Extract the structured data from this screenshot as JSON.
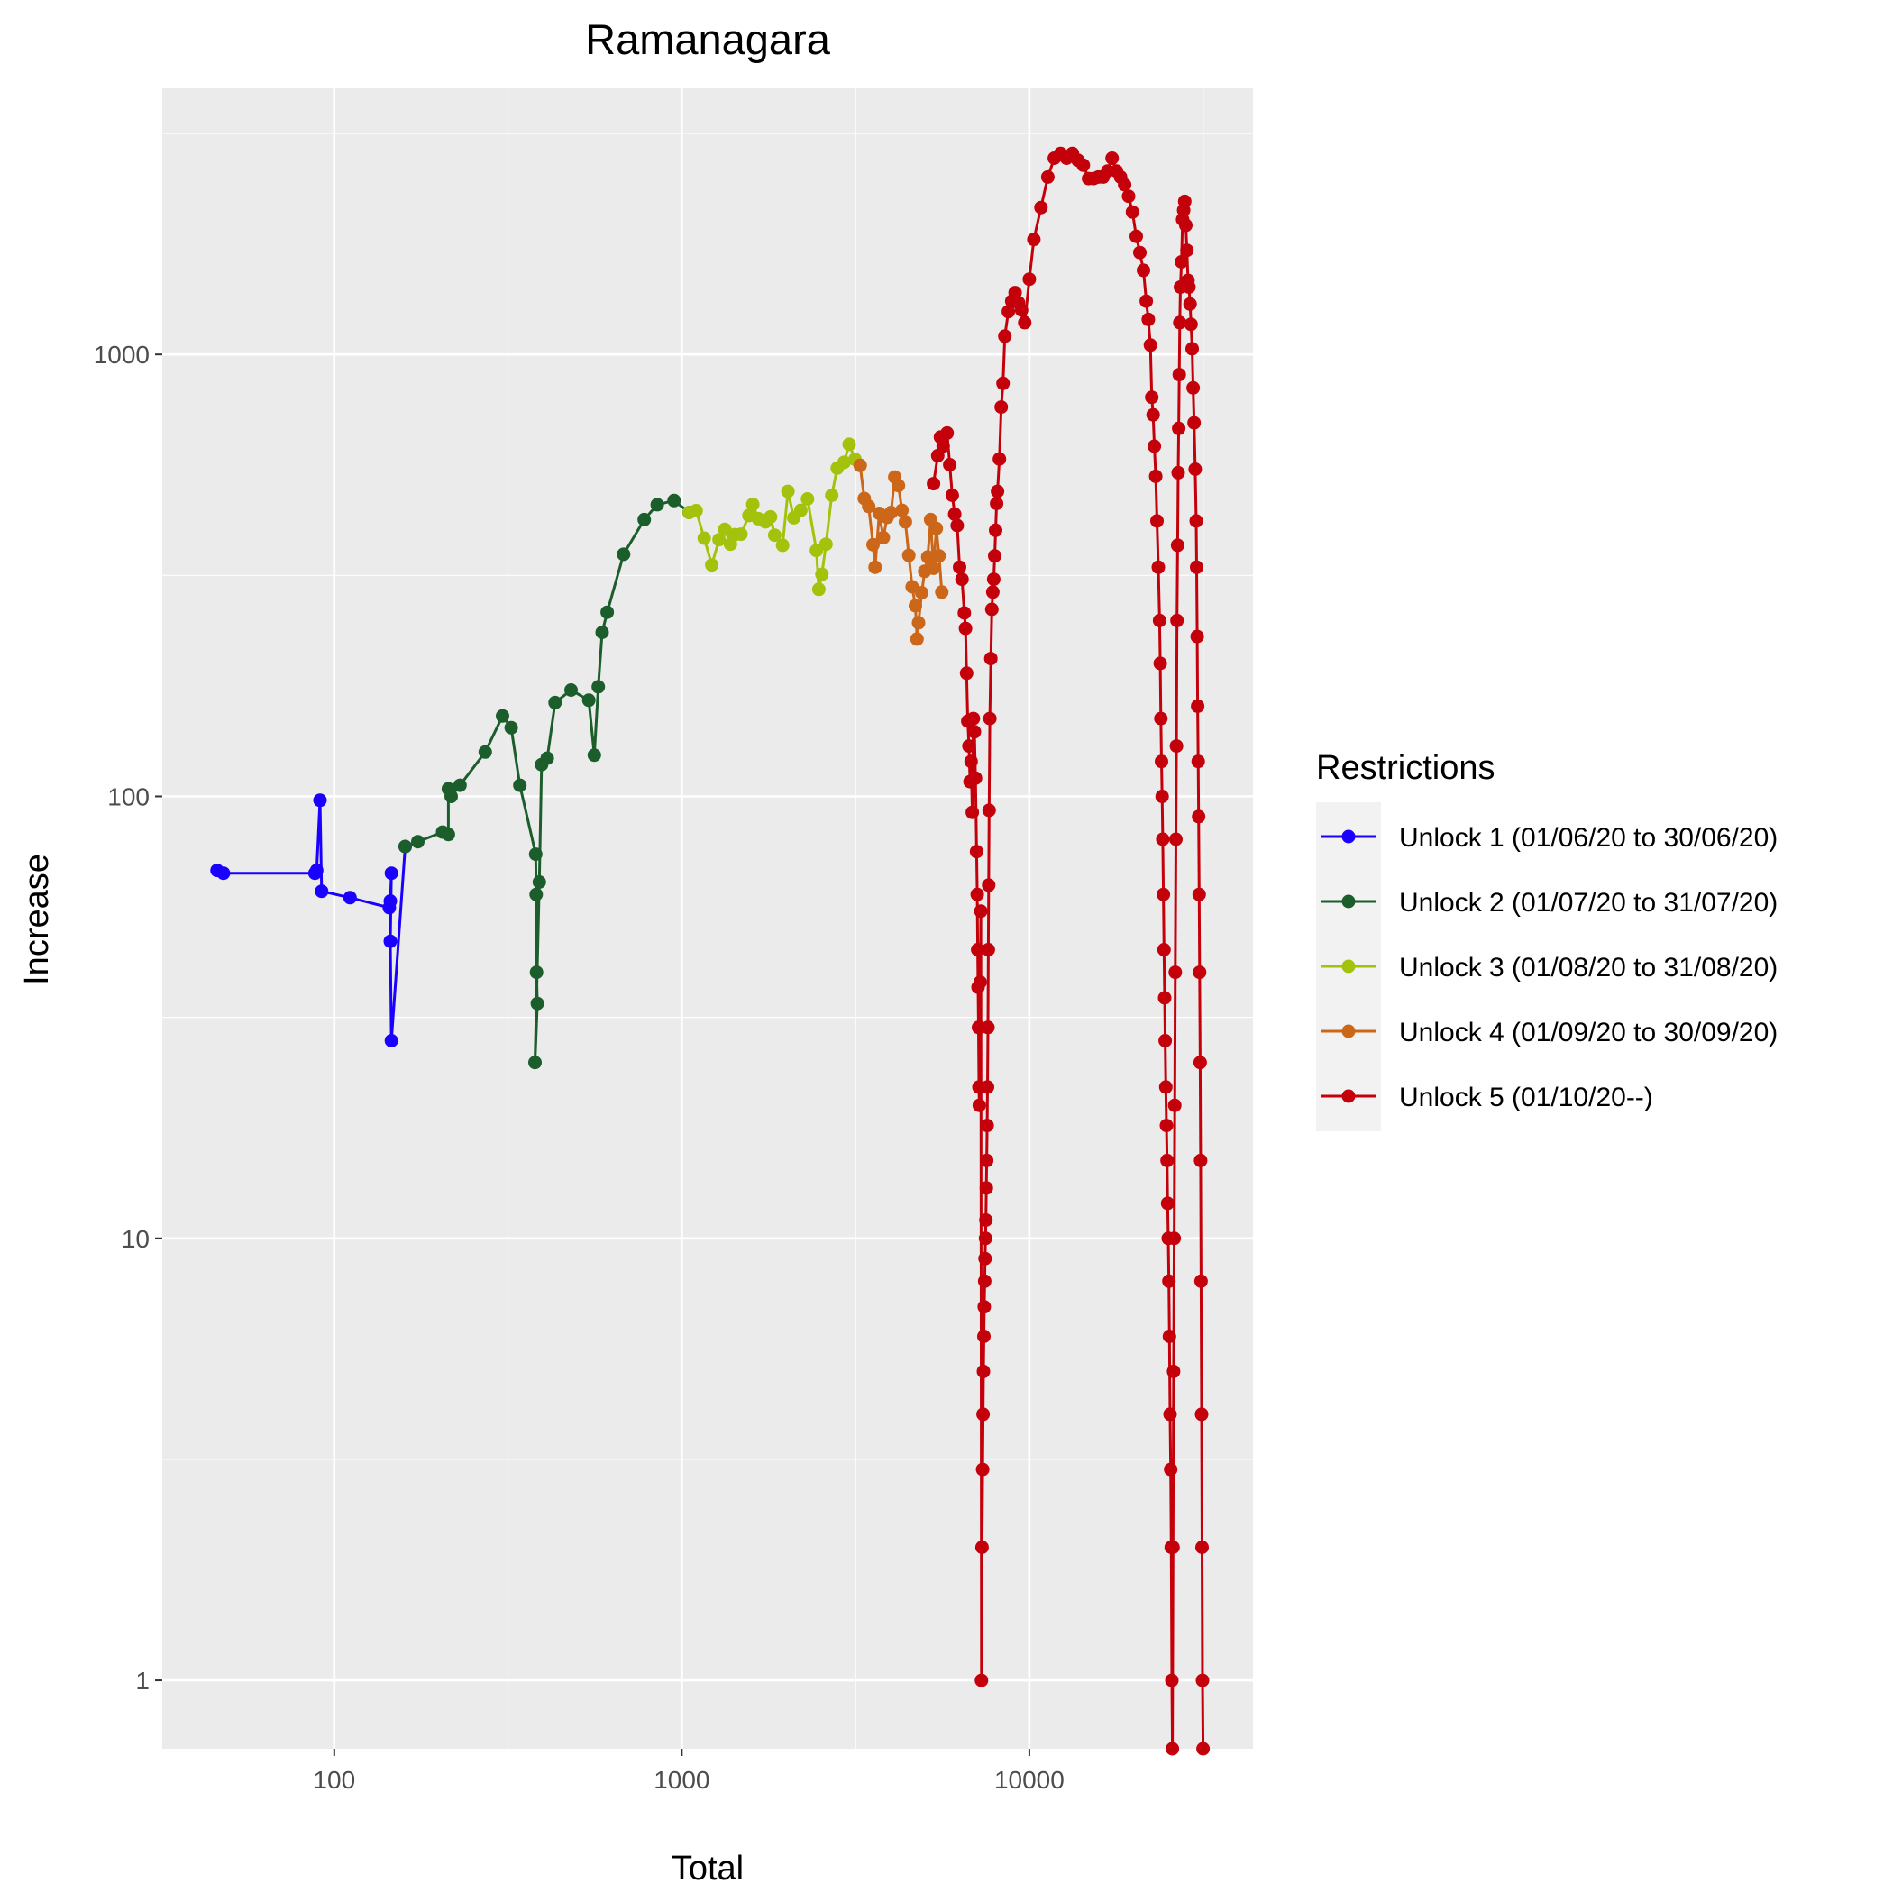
{
  "chart_data": {
    "type": "line",
    "title": "Ramanagara",
    "xlabel": "Total",
    "ylabel": "Increase",
    "x_scale": "log10",
    "y_scale": "log10",
    "xlim": [
      32,
      44000
    ],
    "ylim": [
      0.7,
      4000
    ],
    "x_ticks": [
      100,
      1000,
      10000
    ],
    "x_tick_labels": [
      "100",
      "1000",
      "10000"
    ],
    "y_ticks": [
      1,
      10,
      100,
      1000
    ],
    "y_tick_labels": [
      "1",
      "10",
      "100",
      "1000"
    ],
    "grid": true,
    "legend": {
      "title": "Restrictions",
      "position": "right"
    },
    "series": [
      {
        "name": "Unlock 1 (01/06/20 to 30/06/20)",
        "color": "#1a00ff",
        "points": [
          [
            46,
            68
          ],
          [
            48,
            67
          ],
          [
            88,
            67
          ],
          [
            89,
            68
          ],
          [
            91,
            98
          ],
          [
            92,
            61
          ],
          [
            111,
            59
          ],
          [
            144,
            56
          ],
          [
            145,
            58
          ],
          [
            146,
            67
          ],
          [
            145,
            47
          ],
          [
            146,
            28
          ],
          [
            160,
            77
          ]
        ]
      },
      {
        "name": "Unlock 2 (01/07/20 to 31/07/20)",
        "color": "#1b5e2b",
        "points": [
          [
            160,
            77
          ],
          [
            174,
            79
          ],
          [
            205,
            83
          ],
          [
            213,
            82
          ],
          [
            213,
            104
          ],
          [
            217,
            100
          ],
          [
            230,
            106
          ],
          [
            272,
            126
          ],
          [
            305,
            152
          ],
          [
            323,
            143
          ],
          [
            342,
            106
          ],
          [
            380,
            74
          ],
          [
            381,
            60
          ],
          [
            382,
            40
          ],
          [
            384,
            34
          ],
          [
            378,
            25
          ],
          [
            389,
            64
          ],
          [
            395,
            118
          ],
          [
            410,
            122
          ],
          [
            432,
            163
          ],
          [
            480,
            174
          ],
          [
            540,
            165
          ],
          [
            560,
            124
          ],
          [
            575,
            177
          ],
          [
            590,
            235
          ],
          [
            610,
            261
          ],
          [
            680,
            353
          ],
          [
            780,
            423
          ],
          [
            850,
            457
          ],
          [
            950,
            467
          ],
          [
            1050,
            439
          ]
        ]
      },
      {
        "name": "Unlock 3 (01/08/20 to 31/08/20)",
        "color": "#a2c20c",
        "points": [
          [
            1050,
            439
          ],
          [
            1100,
            443
          ],
          [
            1160,
            384
          ],
          [
            1220,
            334
          ],
          [
            1280,
            381
          ],
          [
            1330,
            402
          ],
          [
            1380,
            372
          ],
          [
            1420,
            391
          ],
          [
            1480,
            392
          ],
          [
            1560,
            432
          ],
          [
            1600,
            458
          ],
          [
            1660,
            425
          ],
          [
            1740,
            418
          ],
          [
            1800,
            429
          ],
          [
            1850,
            390
          ],
          [
            1950,
            370
          ],
          [
            2020,
            490
          ],
          [
            2100,
            427
          ],
          [
            2200,
            444
          ],
          [
            2300,
            471
          ],
          [
            2440,
            360
          ],
          [
            2480,
            294
          ],
          [
            2530,
            318
          ],
          [
            2600,
            372
          ],
          [
            2700,
            480
          ],
          [
            2800,
            553
          ],
          [
            2930,
            570
          ],
          [
            3030,
            626
          ],
          [
            3150,
            579
          ],
          [
            3260,
            561
          ]
        ]
      },
      {
        "name": "Unlock 4 (01/09/20 to 30/09/20)",
        "color": "#cc6619",
        "points": [
          [
            3260,
            561
          ],
          [
            3350,
            472
          ],
          [
            3450,
            453
          ],
          [
            3550,
            371
          ],
          [
            3600,
            330
          ],
          [
            3700,
            437
          ],
          [
            3800,
            385
          ],
          [
            3900,
            428
          ],
          [
            4000,
            439
          ],
          [
            4100,
            528
          ],
          [
            4200,
            505
          ],
          [
            4300,
            444
          ],
          [
            4400,
            418
          ],
          [
            4500,
            351
          ],
          [
            4600,
            298
          ],
          [
            4700,
            270
          ],
          [
            4750,
            227
          ],
          [
            4800,
            247
          ],
          [
            4900,
            289
          ],
          [
            5000,
            323
          ],
          [
            5100,
            348
          ],
          [
            5200,
            423
          ],
          [
            5300,
            328
          ],
          [
            5400,
            404
          ],
          [
            5500,
            350
          ],
          [
            5600,
            290
          ]
        ]
      },
      {
        "name": "Unlock 5 (01/10/20--)",
        "color": "#c4000b",
        "points": [
          [
            5300,
            510
          ],
          [
            5450,
            590
          ],
          [
            5550,
            650
          ],
          [
            5650,
            620
          ],
          [
            5800,
            664
          ],
          [
            5900,
            563
          ],
          [
            6000,
            480
          ],
          [
            6100,
            435
          ],
          [
            6200,
            410
          ],
          [
            6300,
            330
          ],
          [
            6400,
            310
          ],
          [
            6500,
            260
          ],
          [
            6550,
            240
          ],
          [
            6600,
            190
          ],
          [
            6650,
            148
          ],
          [
            6700,
            130
          ],
          [
            6750,
            108
          ],
          [
            6800,
            120
          ],
          [
            6850,
            92
          ],
          [
            6900,
            150
          ],
          [
            6950,
            140
          ],
          [
            7000,
            110
          ],
          [
            7050,
            75
          ],
          [
            7080,
            60
          ],
          [
            7100,
            45
          ],
          [
            7120,
            37
          ],
          [
            7140,
            30
          ],
          [
            7160,
            22
          ],
          [
            7180,
            20
          ],
          [
            7200,
            30
          ],
          [
            7220,
            38
          ],
          [
            7250,
            55
          ],
          [
            7280,
            1
          ],
          [
            7310,
            2
          ],
          [
            7340,
            3
          ],
          [
            7360,
            4
          ],
          [
            7380,
            5
          ],
          [
            7400,
            6
          ],
          [
            7420,
            7
          ],
          [
            7440,
            8
          ],
          [
            7460,
            9
          ],
          [
            7480,
            10
          ],
          [
            7500,
            11
          ],
          [
            7520,
            13
          ],
          [
            7540,
            15
          ],
          [
            7560,
            18
          ],
          [
            7580,
            22
          ],
          [
            7600,
            30
          ],
          [
            7620,
            45
          ],
          [
            7640,
            63
          ],
          [
            7660,
            93
          ],
          [
            7700,
            150
          ],
          [
            7750,
            205
          ],
          [
            7800,
            265
          ],
          [
            7850,
            290
          ],
          [
            7900,
            310
          ],
          [
            7950,
            350
          ],
          [
            8000,
            400
          ],
          [
            8050,
            460
          ],
          [
            8100,
            490
          ],
          [
            8200,
            580
          ],
          [
            8300,
            760
          ],
          [
            8400,
            860
          ],
          [
            8500,
            1100
          ],
          [
            8700,
            1250
          ],
          [
            8900,
            1320
          ],
          [
            9100,
            1380
          ],
          [
            9300,
            1310
          ],
          [
            9500,
            1260
          ],
          [
            9700,
            1180
          ],
          [
            10000,
            1480
          ],
          [
            10300,
            1820
          ],
          [
            10800,
            2150
          ],
          [
            11300,
            2520
          ],
          [
            11800,
            2780
          ],
          [
            12300,
            2850
          ],
          [
            12800,
            2780
          ],
          [
            13300,
            2850
          ],
          [
            13800,
            2750
          ],
          [
            14300,
            2680
          ],
          [
            14800,
            2500
          ],
          [
            15300,
            2500
          ],
          [
            15800,
            2520
          ],
          [
            16300,
            2520
          ],
          [
            16800,
            2600
          ],
          [
            17300,
            2780
          ],
          [
            17800,
            2600
          ],
          [
            18300,
            2520
          ],
          [
            18800,
            2420
          ],
          [
            19300,
            2280
          ],
          [
            19800,
            2100
          ],
          [
            20300,
            1850
          ],
          [
            20800,
            1700
          ],
          [
            21300,
            1550
          ],
          [
            21700,
            1320
          ],
          [
            22000,
            1200
          ],
          [
            22300,
            1050
          ],
          [
            22500,
            800
          ],
          [
            22700,
            730
          ],
          [
            22900,
            620
          ],
          [
            23100,
            530
          ],
          [
            23300,
            420
          ],
          [
            23500,
            330
          ],
          [
            23700,
            250
          ],
          [
            23800,
            200
          ],
          [
            23900,
            150
          ],
          [
            24000,
            120
          ],
          [
            24100,
            100
          ],
          [
            24200,
            80
          ],
          [
            24300,
            60
          ],
          [
            24400,
            45
          ],
          [
            24500,
            35
          ],
          [
            24600,
            28
          ],
          [
            24700,
            22
          ],
          [
            24800,
            18
          ],
          [
            24900,
            15
          ],
          [
            25000,
            12
          ],
          [
            25100,
            10
          ],
          [
            25200,
            8
          ],
          [
            25300,
            6
          ],
          [
            25400,
            4
          ],
          [
            25500,
            3
          ],
          [
            25600,
            2
          ],
          [
            25700,
            1
          ],
          [
            25800,
            0.7
          ],
          [
            25900,
            2
          ],
          [
            26000,
            5
          ],
          [
            26100,
            10
          ],
          [
            26200,
            20
          ],
          [
            26300,
            40
          ],
          [
            26400,
            80
          ],
          [
            26500,
            130
          ],
          [
            26600,
            250
          ],
          [
            26700,
            370
          ],
          [
            26800,
            540
          ],
          [
            26900,
            680
          ],
          [
            27000,
            900
          ],
          [
            27100,
            1180
          ],
          [
            27200,
            1420
          ],
          [
            27400,
            1620
          ],
          [
            27600,
            2020
          ],
          [
            27800,
            2120
          ],
          [
            28000,
            2220
          ],
          [
            28200,
            1960
          ],
          [
            28400,
            1720
          ],
          [
            28600,
            1470
          ],
          [
            28800,
            1420
          ],
          [
            29000,
            1300
          ],
          [
            29200,
            1170
          ],
          [
            29400,
            1030
          ],
          [
            29600,
            840
          ],
          [
            29800,
            700
          ],
          [
            30000,
            550
          ],
          [
            30200,
            420
          ],
          [
            30300,
            330
          ],
          [
            30400,
            230
          ],
          [
            30500,
            160
          ],
          [
            30600,
            120
          ],
          [
            30700,
            90
          ],
          [
            30800,
            60
          ],
          [
            30900,
            40
          ],
          [
            31000,
            25
          ],
          [
            31100,
            15
          ],
          [
            31200,
            8
          ],
          [
            31300,
            4
          ],
          [
            31400,
            2
          ],
          [
            31500,
            1
          ],
          [
            31600,
            0.7
          ]
        ]
      }
    ]
  }
}
